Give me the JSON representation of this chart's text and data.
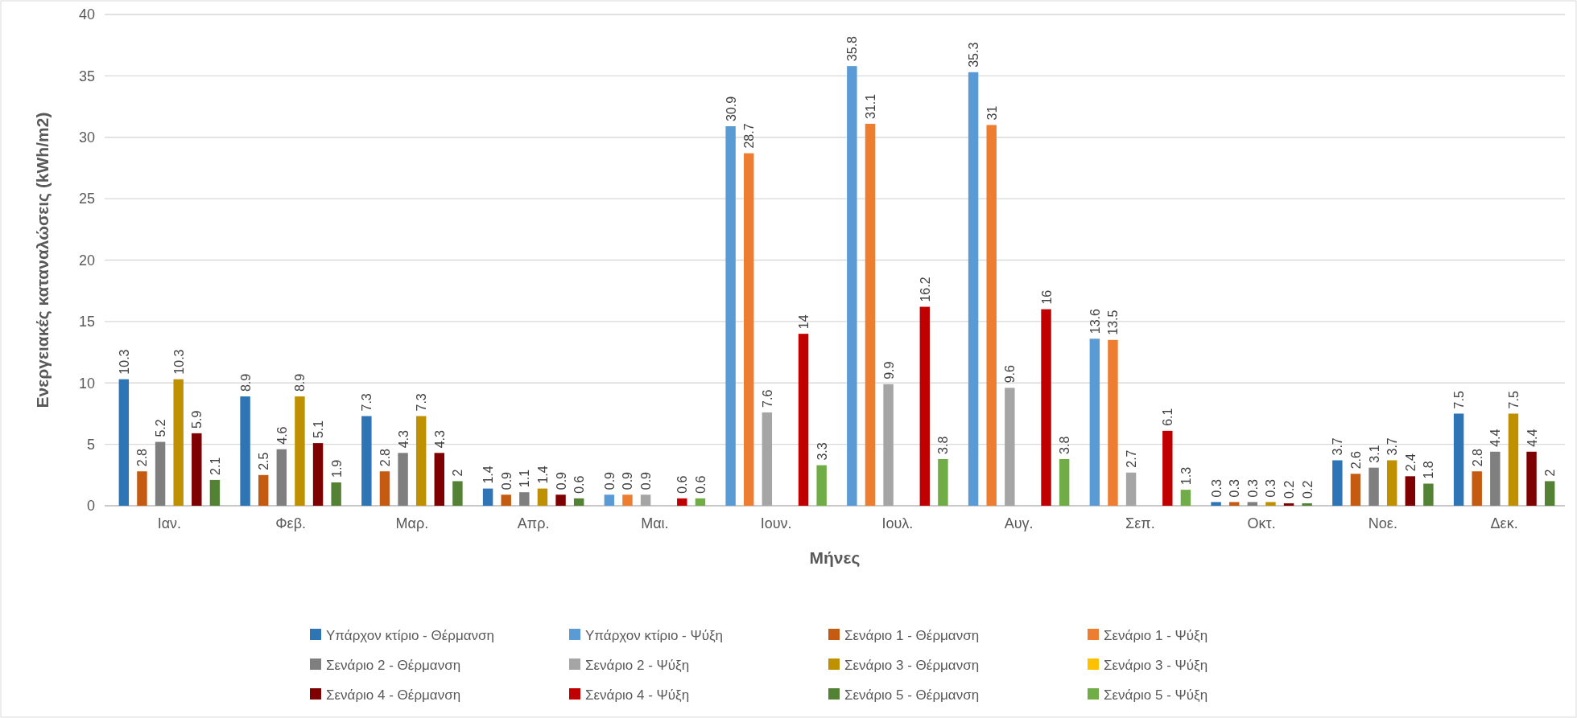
{
  "chart_data": {
    "type": "bar",
    "xlabel": "Μήνες",
    "ylabel": "Ενεργειακές καταναλώσεις (kWh/m2)",
    "categories": [
      "Ιαν.",
      "Φεβ.",
      "Μαρ.",
      "Απρ.",
      "Μαι.",
      "Ιουν.",
      "Ιουλ.",
      "Αυγ.",
      "Σεπ.",
      "Οκτ.",
      "Νοε.",
      "Δεκ."
    ],
    "series": [
      {
        "name": "Υπάρχον κτίριο - Θέρμανση",
        "color": "#2e75b6",
        "values": [
          10.3,
          8.9,
          7.3,
          1.4,
          null,
          null,
          null,
          null,
          null,
          0.3,
          3.7,
          7.5
        ]
      },
      {
        "name": "Υπάρχον κτίριο - Ψύξη",
        "color": "#5b9bd5",
        "values": [
          null,
          null,
          null,
          null,
          0.9,
          30.9,
          35.8,
          35.3,
          13.6,
          null,
          null,
          null
        ]
      },
      {
        "name": "Σενάριο 1 - Θέρμανση",
        "color": "#c55a11",
        "values": [
          2.8,
          2.5,
          2.8,
          0.9,
          null,
          null,
          null,
          null,
          null,
          0.3,
          2.6,
          2.8
        ]
      },
      {
        "name": "Σενάριο 1 - Ψύξη",
        "color": "#ed7d31",
        "values": [
          null,
          null,
          null,
          null,
          0.9,
          28.7,
          31.1,
          31,
          13.5,
          null,
          null,
          null
        ]
      },
      {
        "name": "Σενάριο 2 - Θέρμανση",
        "color": "#7f7f7f",
        "values": [
          5.2,
          4.6,
          4.3,
          1.1,
          null,
          null,
          null,
          null,
          null,
          0.3,
          3.1,
          4.4
        ]
      },
      {
        "name": "Σενάριο 2 - Ψύξη",
        "color": "#a5a5a5",
        "values": [
          null,
          null,
          null,
          null,
          0.9,
          7.6,
          9.9,
          9.6,
          2.7,
          null,
          null,
          null
        ]
      },
      {
        "name": "Σενάριο 3 - Θέρμανση",
        "color": "#bf9000",
        "values": [
          10.3,
          8.9,
          7.3,
          1.4,
          null,
          null,
          null,
          null,
          null,
          0.3,
          3.7,
          7.5
        ]
      },
      {
        "name": "Σενάριο 3 - Ψύξη",
        "color": "#ffc000",
        "values": [
          null,
          null,
          null,
          null,
          null,
          null,
          null,
          null,
          null,
          null,
          null,
          null
        ]
      },
      {
        "name": "Σενάριο 4 - Θέρμανση",
        "color": "#7f0000",
        "values": [
          5.9,
          5.1,
          4.3,
          0.9,
          null,
          null,
          null,
          null,
          null,
          0.2,
          2.4,
          4.4
        ]
      },
      {
        "name": "Σενάριο 4 - Ψύξη",
        "color": "#c00000",
        "values": [
          null,
          null,
          null,
          null,
          0.6,
          14,
          16.2,
          16,
          6.1,
          null,
          null,
          null
        ]
      },
      {
        "name": "Σενάριο 5 - Θέρμανση",
        "color": "#548235",
        "values": [
          2.1,
          1.9,
          2,
          0.6,
          null,
          null,
          null,
          null,
          null,
          0.2,
          1.8,
          2
        ]
      },
      {
        "name": "Σενάριο 5 - Ψύξη",
        "color": "#70ad47",
        "values": [
          null,
          null,
          null,
          null,
          0.6,
          3.3,
          3.8,
          3.8,
          1.3,
          null,
          null,
          null
        ]
      }
    ],
    "ylim": [
      0,
      40
    ],
    "yticks": [
      0,
      5,
      10,
      15,
      20,
      25,
      30,
      35,
      40
    ],
    "grid": "y",
    "data_labels": true,
    "legend": "bottom"
  }
}
